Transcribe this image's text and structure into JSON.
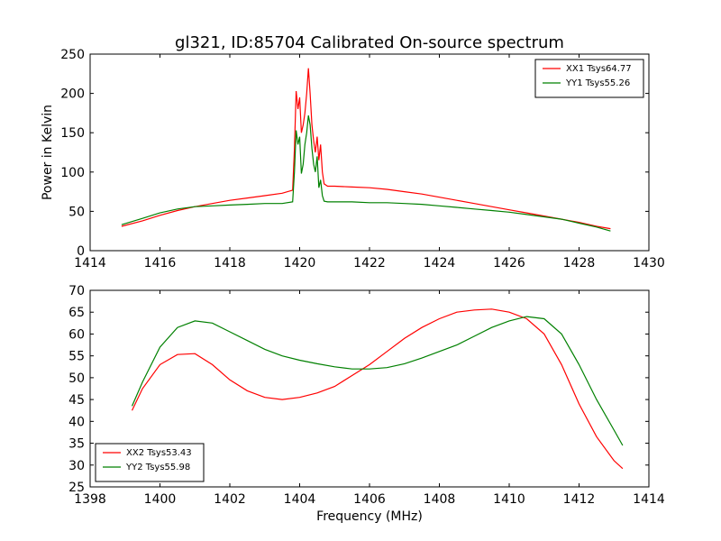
{
  "figure_title": "gl321, ID:85704 Calibrated On-source spectrum",
  "chart_data": [
    {
      "type": "line",
      "title": "gl321, ID:85704 Calibrated On-source spectrum",
      "xlabel": "",
      "ylabel": "Power in Kelvin",
      "xlim": [
        1414,
        1430
      ],
      "ylim": [
        0,
        250
      ],
      "xticks": [
        1414,
        1416,
        1418,
        1420,
        1422,
        1424,
        1426,
        1428,
        1430
      ],
      "yticks": [
        0,
        50,
        100,
        150,
        200,
        250
      ],
      "grid": false,
      "legend": "top-right",
      "series": [
        {
          "name": "XX1 Tsys64.77",
          "color": "#ff0000",
          "x": [
            1414.9,
            1415.5,
            1416.0,
            1416.5,
            1417.0,
            1417.5,
            1418.0,
            1418.5,
            1419.0,
            1419.5,
            1419.8,
            1419.85,
            1419.9,
            1419.95,
            1420.0,
            1420.05,
            1420.1,
            1420.15,
            1420.2,
            1420.25,
            1420.3,
            1420.35,
            1420.4,
            1420.45,
            1420.5,
            1420.55,
            1420.6,
            1420.65,
            1420.7,
            1420.8,
            1421.0,
            1421.5,
            1422.0,
            1422.5,
            1423.0,
            1423.5,
            1424.0,
            1424.5,
            1425.0,
            1425.5,
            1426.0,
            1426.5,
            1427.0,
            1427.5,
            1428.0,
            1428.5,
            1428.9
          ],
          "y": [
            31,
            38,
            45,
            51,
            56,
            60,
            64,
            67,
            70,
            73,
            77,
            130,
            203,
            180,
            195,
            150,
            160,
            175,
            200,
            232,
            200,
            160,
            140,
            125,
            145,
            115,
            135,
            100,
            85,
            82,
            82,
            81,
            80,
            78,
            75,
            72,
            68,
            64,
            60,
            56,
            52,
            48,
            44,
            40,
            36,
            31,
            28
          ]
        },
        {
          "name": "YY1 Tsys55.26",
          "color": "#008000",
          "x": [
            1414.9,
            1415.5,
            1416.0,
            1416.5,
            1417.0,
            1417.5,
            1418.0,
            1418.5,
            1419.0,
            1419.5,
            1419.8,
            1419.85,
            1419.9,
            1419.95,
            1420.0,
            1420.05,
            1420.1,
            1420.15,
            1420.2,
            1420.25,
            1420.3,
            1420.35,
            1420.4,
            1420.45,
            1420.5,
            1420.55,
            1420.6,
            1420.65,
            1420.7,
            1420.8,
            1421.0,
            1421.5,
            1422.0,
            1422.5,
            1423.0,
            1423.5,
            1424.0,
            1424.5,
            1425.0,
            1425.5,
            1426.0,
            1426.5,
            1427.0,
            1427.5,
            1428.0,
            1428.5,
            1428.9
          ],
          "y": [
            33,
            41,
            48,
            53,
            56,
            57,
            58,
            59,
            60,
            60,
            62,
            100,
            153,
            135,
            145,
            98,
            110,
            135,
            150,
            172,
            160,
            130,
            110,
            100,
            120,
            80,
            90,
            70,
            63,
            62,
            62,
            62,
            61,
            61,
            60,
            59,
            57,
            55,
            53,
            51,
            49,
            46,
            43,
            40,
            35,
            30,
            25
          ]
        }
      ]
    },
    {
      "type": "line",
      "title": "",
      "xlabel": "Frequency (MHz)",
      "ylabel": "",
      "xlim": [
        1398,
        1414
      ],
      "ylim": [
        25,
        70
      ],
      "xticks": [
        1398,
        1400,
        1402,
        1404,
        1406,
        1408,
        1410,
        1412,
        1414
      ],
      "yticks": [
        25,
        30,
        35,
        40,
        45,
        50,
        55,
        60,
        65,
        70
      ],
      "grid": false,
      "legend": "bottom-left",
      "series": [
        {
          "name": "XX2 Tsys53.43",
          "color": "#ff0000",
          "x": [
            1399.2,
            1399.5,
            1400.0,
            1400.5,
            1401.0,
            1401.5,
            1402.0,
            1402.5,
            1403.0,
            1403.5,
            1404.0,
            1404.5,
            1405.0,
            1405.5,
            1406.0,
            1406.5,
            1407.0,
            1407.5,
            1408.0,
            1408.5,
            1409.0,
            1409.5,
            1410.0,
            1410.5,
            1411.0,
            1411.5,
            1412.0,
            1412.5,
            1413.0,
            1413.25
          ],
          "y": [
            42.5,
            47.5,
            53,
            55.3,
            55.5,
            53,
            49.5,
            47,
            45.5,
            45,
            45.5,
            46.5,
            48,
            50.5,
            53,
            56,
            59,
            61.5,
            63.5,
            65,
            65.5,
            65.7,
            65,
            63.5,
            60,
            53,
            44,
            36.5,
            31,
            29.2
          ]
        },
        {
          "name": "YY2 Tsys55.98",
          "color": "#008000",
          "x": [
            1399.2,
            1399.5,
            1400.0,
            1400.5,
            1401.0,
            1401.5,
            1402.0,
            1402.5,
            1403.0,
            1403.5,
            1404.0,
            1404.5,
            1405.0,
            1405.5,
            1406.0,
            1406.5,
            1407.0,
            1407.5,
            1408.0,
            1408.5,
            1409.0,
            1409.5,
            1410.0,
            1410.5,
            1411.0,
            1411.5,
            1412.0,
            1412.5,
            1413.0,
            1413.25
          ],
          "y": [
            43.5,
            49,
            57,
            61.5,
            63,
            62.5,
            60.5,
            58.5,
            56.5,
            55,
            54,
            53.2,
            52.5,
            52,
            52,
            52.3,
            53.2,
            54.5,
            56,
            57.5,
            59.5,
            61.5,
            63,
            64,
            63.5,
            60,
            53,
            45,
            38,
            34.5
          ]
        }
      ]
    }
  ]
}
